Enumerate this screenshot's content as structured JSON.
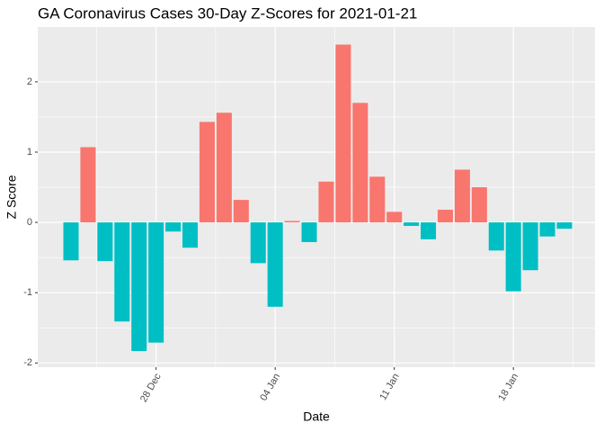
{
  "chart_data": {
    "type": "bar",
    "title": "GA Coronavirus Cases 30-Day Z-Scores for 2021-01-21",
    "x_label": "Date",
    "y_label": "Z Score",
    "categories": [
      null,
      null,
      null,
      null,
      null,
      "28 Dec",
      null,
      null,
      null,
      null,
      null,
      null,
      "04 Jan",
      null,
      null,
      null,
      null,
      null,
      null,
      "11 Jan",
      null,
      null,
      null,
      null,
      null,
      null,
      "18 Jan",
      null,
      null,
      null
    ],
    "values": [
      -0.54,
      1.07,
      -0.55,
      -1.41,
      -1.83,
      -1.71,
      -0.13,
      -0.36,
      1.43,
      1.56,
      0.32,
      -0.58,
      -1.2,
      0.02,
      -0.28,
      0.58,
      2.53,
      1.7,
      0.65,
      0.15,
      -0.05,
      -0.24,
      0.18,
      0.75,
      0.5,
      -0.4,
      -0.98,
      -0.68,
      -0.2,
      -0.09
    ],
    "colors": [
      "#F8766D",
      "#00BFC4"
    ],
    "ylim": [
      -2.06,
      2.78
    ],
    "yticks": [
      -2,
      -1,
      0,
      1,
      2
    ],
    "grid": true
  }
}
